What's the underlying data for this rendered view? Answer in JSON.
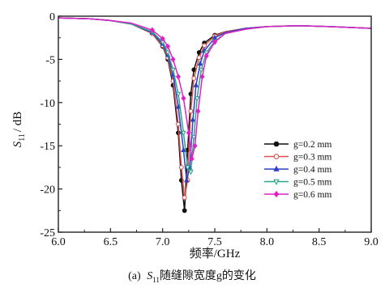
{
  "chart_data": {
    "type": "line",
    "xlabel": "频率/GHz",
    "ylabel": "S11 / dB",
    "ylabel_main": "S",
    "ylabel_sub": "11",
    "ylabel_rest": "/ dB",
    "caption": "(a) S11随缝隙宽度g的变化",
    "caption_prefix": "(a)",
    "caption_main": "S",
    "caption_sub": "11",
    "caption_rest": "随缝隙宽度g的变化",
    "xlim": [
      6.0,
      9.0
    ],
    "ylim": [
      -25,
      0
    ],
    "xticks": [
      "6.0",
      "6.5",
      "7.0",
      "7.5",
      "8.0",
      "8.5",
      "9.0"
    ],
    "yticks": [
      "0",
      "-5",
      "-10",
      "-15",
      "-20",
      "-25"
    ],
    "grid": false,
    "legend_position": "lower-right",
    "series": [
      {
        "name": "g=0.2 mm",
        "color": "#111111",
        "marker": "circle-filled",
        "x": [
          6.0,
          6.3,
          6.5,
          6.7,
          6.9,
          7.0,
          7.05,
          7.1,
          7.15,
          7.18,
          7.21,
          7.24,
          7.27,
          7.3,
          7.35,
          7.4,
          7.5,
          7.6,
          7.8,
          8.0,
          8.3,
          8.6,
          9.0
        ],
        "y": [
          -0.2,
          -0.3,
          -0.5,
          -0.9,
          -2.0,
          -3.5,
          -5.0,
          -8.0,
          -13.5,
          -19.0,
          -22.5,
          -15.5,
          -9.0,
          -6.2,
          -4.2,
          -3.1,
          -2.2,
          -1.8,
          -1.4,
          -1.2,
          -1.1,
          -1.2,
          -1.4
        ]
      },
      {
        "name": "g=0.3 mm",
        "color": "#d9534f",
        "marker": "circle-open",
        "x": [
          6.0,
          6.3,
          6.5,
          6.7,
          6.9,
          7.0,
          7.05,
          7.1,
          7.15,
          7.18,
          7.21,
          7.24,
          7.27,
          7.3,
          7.35,
          7.4,
          7.5,
          7.6,
          7.8,
          8.0,
          8.3,
          8.6,
          9.0
        ],
        "y": [
          -0.2,
          -0.3,
          -0.5,
          -0.9,
          -2.0,
          -3.4,
          -4.8,
          -7.5,
          -12.5,
          -17.5,
          -21.0,
          -19.0,
          -11.0,
          -7.2,
          -4.8,
          -3.4,
          -2.3,
          -1.8,
          -1.4,
          -1.2,
          -1.1,
          -1.2,
          -1.4
        ]
      },
      {
        "name": "g=0.4 mm",
        "color": "#2f3fc4",
        "marker": "triangle-filled",
        "x": [
          6.0,
          6.3,
          6.5,
          6.7,
          6.9,
          7.0,
          7.05,
          7.1,
          7.15,
          7.2,
          7.23,
          7.26,
          7.29,
          7.32,
          7.36,
          7.4,
          7.5,
          7.6,
          7.8,
          8.0,
          8.3,
          8.6,
          9.0
        ],
        "y": [
          -0.2,
          -0.3,
          -0.5,
          -0.9,
          -1.9,
          -3.2,
          -4.5,
          -6.8,
          -10.5,
          -15.5,
          -19.0,
          -17.5,
          -12.0,
          -8.0,
          -5.5,
          -4.0,
          -2.5,
          -1.9,
          -1.4,
          -1.2,
          -1.1,
          -1.2,
          -1.4
        ]
      },
      {
        "name": "g=0.5 mm",
        "color": "#2aa58a",
        "marker": "triangle-down-open",
        "x": [
          6.0,
          6.3,
          6.5,
          6.7,
          6.9,
          7.0,
          7.05,
          7.1,
          7.15,
          7.2,
          7.24,
          7.27,
          7.3,
          7.33,
          7.37,
          7.42,
          7.5,
          7.6,
          7.8,
          8.0,
          8.3,
          8.6,
          9.0
        ],
        "y": [
          -0.2,
          -0.3,
          -0.5,
          -0.9,
          -1.8,
          -3.0,
          -4.2,
          -6.2,
          -9.0,
          -13.5,
          -17.5,
          -18.0,
          -14.0,
          -9.5,
          -6.2,
          -4.2,
          -2.9,
          -2.0,
          -1.5,
          -1.2,
          -1.1,
          -1.2,
          -1.4
        ]
      },
      {
        "name": "g=0.6 mm",
        "color": "#e020c8",
        "marker": "diamond-filled",
        "x": [
          6.0,
          6.3,
          6.5,
          6.7,
          6.9,
          7.0,
          7.05,
          7.1,
          7.15,
          7.2,
          7.25,
          7.28,
          7.31,
          7.34,
          7.38,
          7.42,
          7.5,
          7.6,
          7.8,
          8.0,
          8.3,
          8.6,
          9.0
        ],
        "y": [
          -0.2,
          -0.3,
          -0.5,
          -0.8,
          -1.6,
          -2.6,
          -3.5,
          -5.0,
          -7.0,
          -9.5,
          -13.5,
          -16.5,
          -15.0,
          -11.0,
          -7.0,
          -4.6,
          -3.0,
          -2.0,
          -1.5,
          -1.2,
          -1.1,
          -1.2,
          -1.4
        ]
      }
    ]
  }
}
